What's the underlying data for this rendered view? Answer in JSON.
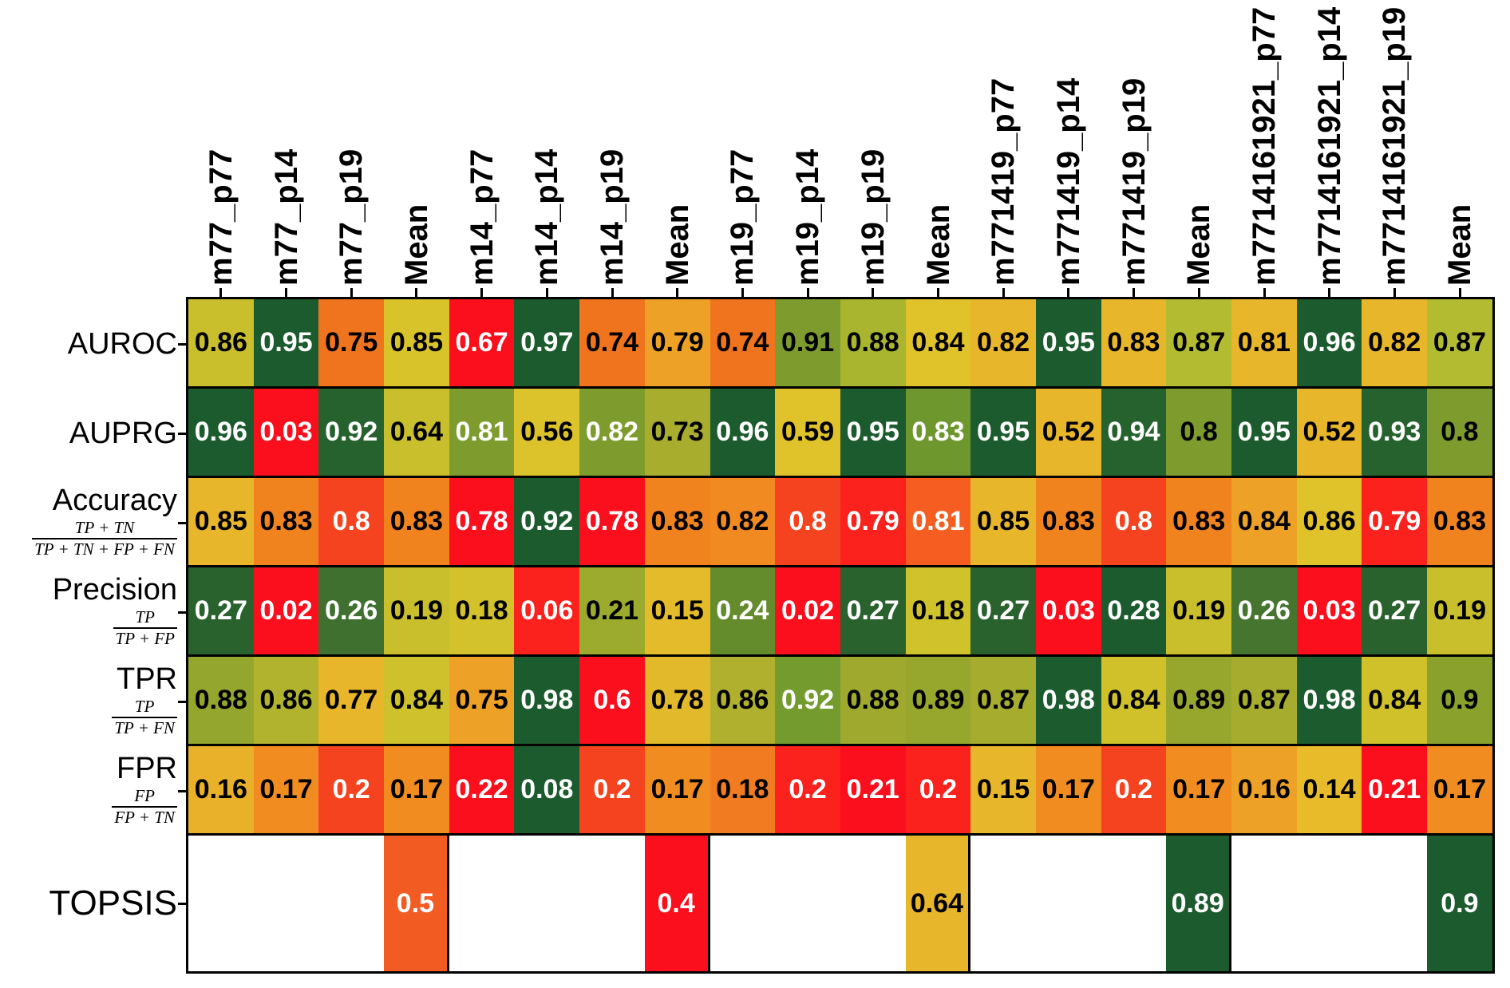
{
  "chart_data": {
    "type": "heatmap",
    "title": "",
    "description": "Per-metric row-normalized red-yellow-green heatmap of model performance across parameter sets, with group Mean columns and a TOPSIS summary row",
    "columns": [
      "m77_p77",
      "m77_p14",
      "m77_p19",
      "Mean",
      "m14_p77",
      "m14_p14",
      "m14_p19",
      "Mean",
      "m19_p77",
      "m19_p14",
      "m19_p19",
      "Mean",
      "m771419_p77",
      "m771419_p14",
      "m771419_p19",
      "Mean",
      "m7714161921_p77",
      "m7714161921_p14",
      "m7714161921_p19",
      "Mean"
    ],
    "group_size": 4,
    "rows": [
      {
        "label": "AUROC",
        "formula_numerator": null,
        "formula_denominator": null,
        "values": [
          0.86,
          0.95,
          0.75,
          0.85,
          0.67,
          0.97,
          0.74,
          0.79,
          0.74,
          0.91,
          0.88,
          0.84,
          0.82,
          0.95,
          0.83,
          0.87,
          0.81,
          0.96,
          0.82,
          0.87
        ],
        "colors": [
          "#c9bf2c",
          "#1c5b2d",
          "#f0741e",
          "#d9c32b",
          "#fb0f1c",
          "#1c5b2d",
          "#f0741e",
          "#eda127",
          "#f0741e",
          "#7e9c2e",
          "#a9b52f",
          "#e0c22b",
          "#e8b62a",
          "#1c5b2d",
          "#e8b62a",
          "#b3bb31",
          "#e8b62a",
          "#1c5b2d",
          "#e8b62a",
          "#b3bb31"
        ],
        "text_colors": [
          "#000000",
          "#ffffff",
          "#000000",
          "#000000",
          "#ffffff",
          "#ffffff",
          "#000000",
          "#000000",
          "#000000",
          "#000000",
          "#000000",
          "#000000",
          "#000000",
          "#ffffff",
          "#000000",
          "#000000",
          "#000000",
          "#ffffff",
          "#000000",
          "#000000"
        ]
      },
      {
        "label": "AUPRG",
        "formula_numerator": null,
        "formula_denominator": null,
        "values": [
          0.96,
          0.03,
          0.92,
          0.64,
          0.81,
          0.56,
          0.82,
          0.73,
          0.96,
          0.59,
          0.95,
          0.83,
          0.95,
          0.52,
          0.94,
          0.8,
          0.95,
          0.52,
          0.93,
          0.8
        ],
        "colors": [
          "#1c5b2d",
          "#fb0f1c",
          "#26622e",
          "#c9bf2c",
          "#7e9c2e",
          "#ddc32b",
          "#7e9c2e",
          "#a9ad2e",
          "#1c5b2d",
          "#e0c22b",
          "#1c5b2d",
          "#6e982e",
          "#1c5b2d",
          "#e8b62a",
          "#26622e",
          "#7e9c2e",
          "#1c5b2d",
          "#e8b62a",
          "#26622e",
          "#7e9c2e"
        ],
        "text_colors": [
          "#ffffff",
          "#ffffff",
          "#ffffff",
          "#000000",
          "#ffffff",
          "#000000",
          "#ffffff",
          "#000000",
          "#ffffff",
          "#000000",
          "#ffffff",
          "#ffffff",
          "#ffffff",
          "#000000",
          "#ffffff",
          "#000000",
          "#ffffff",
          "#000000",
          "#ffffff",
          "#000000"
        ]
      },
      {
        "label": "Accuracy",
        "formula_numerator": "TP + TN",
        "formula_denominator": "TP + TN + FP + FN",
        "values": [
          0.85,
          0.83,
          0.8,
          0.83,
          0.78,
          0.92,
          0.78,
          0.83,
          0.82,
          0.8,
          0.79,
          0.81,
          0.85,
          0.83,
          0.8,
          0.83,
          0.84,
          0.86,
          0.79,
          0.83
        ],
        "colors": [
          "#e8b62a",
          "#f1831f",
          "#f6431f",
          "#f1831f",
          "#fb0f1c",
          "#1c5b2d",
          "#fb0f1c",
          "#f1831f",
          "#f18a20",
          "#f6431f",
          "#fb221d",
          "#f55e20",
          "#e8b62a",
          "#f1831f",
          "#f6431f",
          "#f1831f",
          "#eda127",
          "#e0c22b",
          "#fb221d",
          "#f1831f"
        ],
        "text_colors": [
          "#000000",
          "#000000",
          "#ffffff",
          "#000000",
          "#ffffff",
          "#ffffff",
          "#ffffff",
          "#000000",
          "#000000",
          "#ffffff",
          "#ffffff",
          "#ffffff",
          "#000000",
          "#000000",
          "#ffffff",
          "#000000",
          "#000000",
          "#000000",
          "#ffffff",
          "#000000"
        ]
      },
      {
        "label": "Precision",
        "formula_numerator": "TP",
        "formula_denominator": "TP + FP",
        "values": [
          0.27,
          0.02,
          0.26,
          0.19,
          0.18,
          0.06,
          0.21,
          0.15,
          0.24,
          0.02,
          0.27,
          0.18,
          0.27,
          0.03,
          0.28,
          0.19,
          0.26,
          0.03,
          0.27,
          0.19
        ],
        "colors": [
          "#2a622e",
          "#fb0f1c",
          "#3f7030",
          "#c9bf2c",
          "#d3c22b",
          "#fb221d",
          "#9cab2e",
          "#e4bb2a",
          "#648c2c",
          "#fb0f1c",
          "#2a622e",
          "#cfc22b",
          "#2a622e",
          "#fb0f1c",
          "#1c5b2d",
          "#c9bf2c",
          "#45752e",
          "#fb0f1c",
          "#2a622e",
          "#c9bf2c"
        ],
        "text_colors": [
          "#ffffff",
          "#ffffff",
          "#ffffff",
          "#000000",
          "#000000",
          "#ffffff",
          "#000000",
          "#000000",
          "#ffffff",
          "#ffffff",
          "#ffffff",
          "#000000",
          "#ffffff",
          "#ffffff",
          "#ffffff",
          "#000000",
          "#ffffff",
          "#ffffff",
          "#ffffff",
          "#000000"
        ]
      },
      {
        "label": "TPR",
        "formula_numerator": "TP",
        "formula_denominator": "TP + FN",
        "values": [
          0.88,
          0.86,
          0.77,
          0.84,
          0.75,
          0.98,
          0.6,
          0.78,
          0.86,
          0.92,
          0.88,
          0.89,
          0.87,
          0.98,
          0.84,
          0.89,
          0.87,
          0.98,
          0.84,
          0.9
        ],
        "colors": [
          "#94a62d",
          "#b1b22e",
          "#e8b62a",
          "#cfc12b",
          "#eda127",
          "#1c5b2d",
          "#fb0f1c",
          "#e2b92a",
          "#b0b02e",
          "#739b2d",
          "#9fa92e",
          "#97a72d",
          "#a6ad2e",
          "#1c5b2d",
          "#d0c12b",
          "#97a72d",
          "#a6ad2e",
          "#1c5b2d",
          "#d0c12b",
          "#8aa22c"
        ],
        "text_colors": [
          "#000000",
          "#000000",
          "#000000",
          "#000000",
          "#000000",
          "#ffffff",
          "#ffffff",
          "#000000",
          "#000000",
          "#ffffff",
          "#000000",
          "#000000",
          "#000000",
          "#ffffff",
          "#000000",
          "#000000",
          "#000000",
          "#ffffff",
          "#000000",
          "#000000"
        ]
      },
      {
        "label": "FPR",
        "formula_numerator": "FP",
        "formula_denominator": "FP + TN",
        "values": [
          0.16,
          0.17,
          0.2,
          0.17,
          0.22,
          0.08,
          0.2,
          0.17,
          0.18,
          0.2,
          0.21,
          0.2,
          0.15,
          0.17,
          0.2,
          0.17,
          0.16,
          0.14,
          0.21,
          0.17
        ],
        "colors": [
          "#e9b029",
          "#f18d20",
          "#f6431f",
          "#f18d20",
          "#fb0f1c",
          "#1c5b2d",
          "#f6431f",
          "#f18d20",
          "#f07b21",
          "#fb221d",
          "#fb0f1c",
          "#fb221d",
          "#e8b62a",
          "#f18d20",
          "#f6431f",
          "#f18d20",
          "#eda127",
          "#e7bb29",
          "#fb0f1c",
          "#f18d20"
        ],
        "text_colors": [
          "#000000",
          "#000000",
          "#ffffff",
          "#000000",
          "#ffffff",
          "#ffffff",
          "#ffffff",
          "#000000",
          "#000000",
          "#ffffff",
          "#ffffff",
          "#ffffff",
          "#000000",
          "#000000",
          "#ffffff",
          "#000000",
          "#000000",
          "#000000",
          "#ffffff",
          "#000000"
        ]
      },
      {
        "label": "TOPSIS",
        "formula_numerator": null,
        "formula_denominator": null,
        "values": [
          null,
          null,
          null,
          0.5,
          null,
          null,
          null,
          0.4,
          null,
          null,
          null,
          0.64,
          null,
          null,
          null,
          0.89,
          null,
          null,
          null,
          0.9
        ],
        "colors": [
          null,
          null,
          null,
          "#f25b22",
          null,
          null,
          null,
          "#fb0f1c",
          null,
          null,
          null,
          "#e8b62a",
          null,
          null,
          null,
          "#1c5b2d",
          null,
          null,
          null,
          "#1c5b2d"
        ],
        "text_colors": [
          null,
          null,
          null,
          "#ffffff",
          null,
          null,
          null,
          "#ffffff",
          null,
          null,
          null,
          "#000000",
          null,
          null,
          null,
          "#ffffff",
          null,
          null,
          null,
          "#ffffff"
        ]
      }
    ],
    "legend": null,
    "grid_border_color": "#000000",
    "background_color": "#ffffff"
  }
}
